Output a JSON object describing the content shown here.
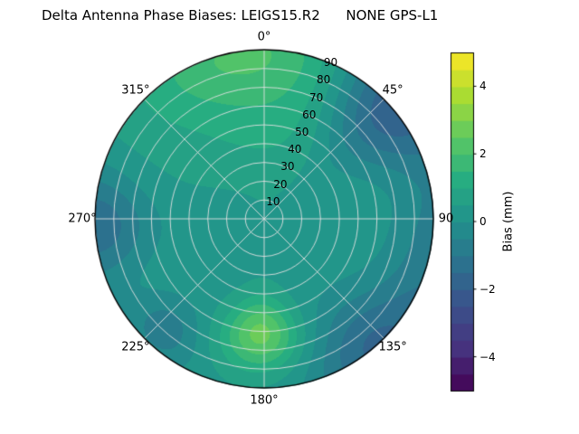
{
  "chart_data": {
    "type": "heatmap",
    "projection": "polar",
    "title": "Delta Antenna Phase Biases: LEIGS15.R2      NONE GPS-L1",
    "azimuth_ticks": [
      {
        "angle": 0,
        "label": "0°"
      },
      {
        "angle": 45,
        "label": "45°"
      },
      {
        "angle": 90,
        "label": "90"
      },
      {
        "angle": 135,
        "label": "135°"
      },
      {
        "angle": 180,
        "label": "180°"
      },
      {
        "angle": 225,
        "label": "225°"
      },
      {
        "angle": 270,
        "label": "270°"
      },
      {
        "angle": 315,
        "label": "315°"
      }
    ],
    "radial_ticks": [
      10,
      20,
      30,
      40,
      50,
      60,
      70,
      80,
      90
    ],
    "radial_max": 90,
    "radial_label_angle": 22.5,
    "colorbar": {
      "label": "Bias (mm)",
      "min": -5,
      "max": 5,
      "ticks": [
        {
          "value": 4,
          "label": "4"
        },
        {
          "value": 2,
          "label": "2"
        },
        {
          "value": 0,
          "label": "0"
        },
        {
          "value": -2,
          "label": "−2"
        },
        {
          "value": -4,
          "label": "−4"
        }
      ]
    },
    "levels": {
      "min": -5,
      "max": 5,
      "step": 0.5
    },
    "colormap": {
      "name": "viridis",
      "stops": [
        [
          0,
          "#440154"
        ],
        [
          0.125,
          "#46327e"
        ],
        [
          0.25,
          "#3b518b"
        ],
        [
          0.375,
          "#2c718e"
        ],
        [
          0.5,
          "#21908c"
        ],
        [
          0.625,
          "#27ad81"
        ],
        [
          0.75,
          "#5cc863"
        ],
        [
          0.875,
          "#aadc32"
        ],
        [
          1,
          "#fde725"
        ]
      ]
    },
    "grid": {
      "color": "rgba(225,225,225,0.9)",
      "edge_color": "#000000"
    },
    "field": {
      "units": "mm",
      "base": 0.3,
      "features": [
        {
          "az": 352,
          "r": 1.02,
          "amp": 1.5,
          "saz": 26,
          "sr": 0.22
        },
        {
          "az": 48,
          "r": 1.0,
          "amp": -2.4,
          "saz": 15,
          "sr": 0.3
        },
        {
          "az": 100,
          "r": 1.05,
          "amp": -1.1,
          "saz": 22,
          "sr": 0.2
        },
        {
          "az": 140,
          "r": 1.0,
          "amp": -1.7,
          "saz": 16,
          "sr": 0.24
        },
        {
          "az": 182,
          "r": 0.68,
          "amp": 2.4,
          "saz": 13,
          "sr": 0.15
        },
        {
          "az": 222,
          "r": 0.88,
          "amp": -1.1,
          "saz": 10,
          "sr": 0.14
        },
        {
          "az": 268,
          "r": 1.0,
          "amp": -1.7,
          "saz": 13,
          "sr": 0.22
        },
        {
          "az": 0,
          "r": 0.6,
          "amp": 0.8,
          "saz": 40,
          "sr": 0.3
        }
      ]
    }
  }
}
